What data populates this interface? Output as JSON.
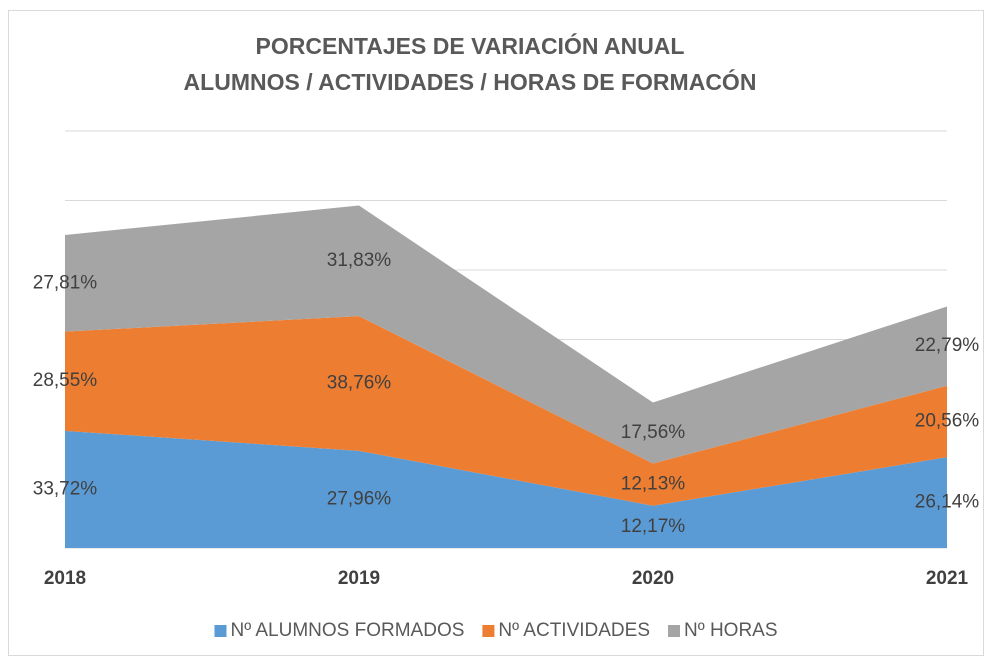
{
  "chart_data": {
    "type": "stacked_area",
    "title": [
      "PORCENTAJES DE VARIACIÓN ANUAL",
      "ALUMNOS / ACTIVIDADES / HORAS DE FORMACÓN"
    ],
    "categories": [
      "2018",
      "2019",
      "2020",
      "2021"
    ],
    "series": [
      {
        "name": "Nº ALUMNOS FORMADOS",
        "color": "#5b9bd5",
        "values": [
          33.72,
          27.96,
          12.17,
          26.14
        ],
        "value_labels": [
          "33,72%",
          "27,96%",
          "12,17%",
          "26,14%"
        ]
      },
      {
        "name": "Nº ACTIVIDADES",
        "color": "#ed7d31",
        "values": [
          28.55,
          38.76,
          12.13,
          20.56
        ],
        "value_labels": [
          "28,55%",
          "38,76%",
          "12,13%",
          "20,56%"
        ]
      },
      {
        "name": "Nº HORAS",
        "color": "#a5a5a5",
        "values": [
          27.81,
          31.83,
          17.56,
          22.79
        ],
        "value_labels": [
          "27,81%",
          "31,83%",
          "17,56%",
          "22,79%"
        ]
      }
    ],
    "ylim": [
      0,
      120
    ],
    "yticks": [
      0,
      20,
      40,
      60,
      80,
      100,
      120
    ],
    "grid": true,
    "legend": "bottom"
  }
}
